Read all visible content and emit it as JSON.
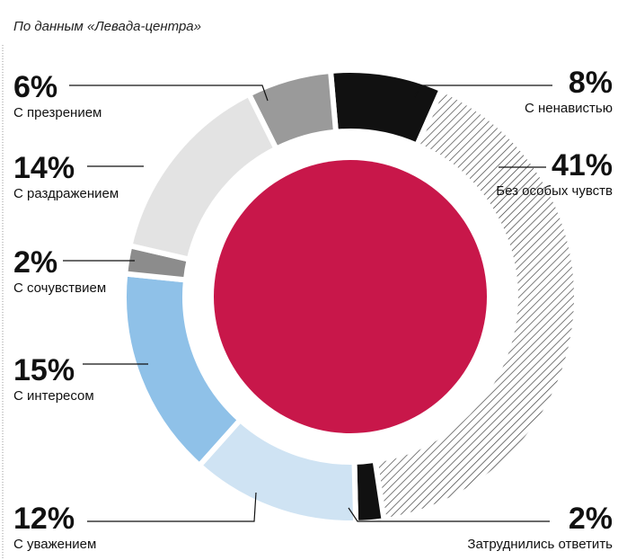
{
  "chart_data": {
    "type": "donut",
    "subtitle": "По данным «Левада-центра»",
    "categories": [
      "С ненавистью",
      "Без особых чувств",
      "Затруднились ответить",
      "С уважением",
      "С интересом",
      "С сочувствием",
      "С раздражением",
      "С презрением"
    ],
    "values": [
      8,
      41,
      2,
      12,
      15,
      2,
      14,
      6
    ],
    "value_labels": [
      "8%",
      "41%",
      "2%",
      "12%",
      "15%",
      "2%",
      "14%",
      "6%"
    ],
    "colors": [
      "#111111",
      "#444444",
      "#111111",
      "#cfe3f3",
      "#8fc1e8",
      "#8c8c8c",
      "#e3e3e3",
      "#9a9a9a"
    ],
    "fills": [
      "solid",
      "hatch",
      "solid",
      "solid",
      "solid",
      "solid",
      "solid",
      "solid"
    ],
    "center_color": "#c8174a"
  }
}
